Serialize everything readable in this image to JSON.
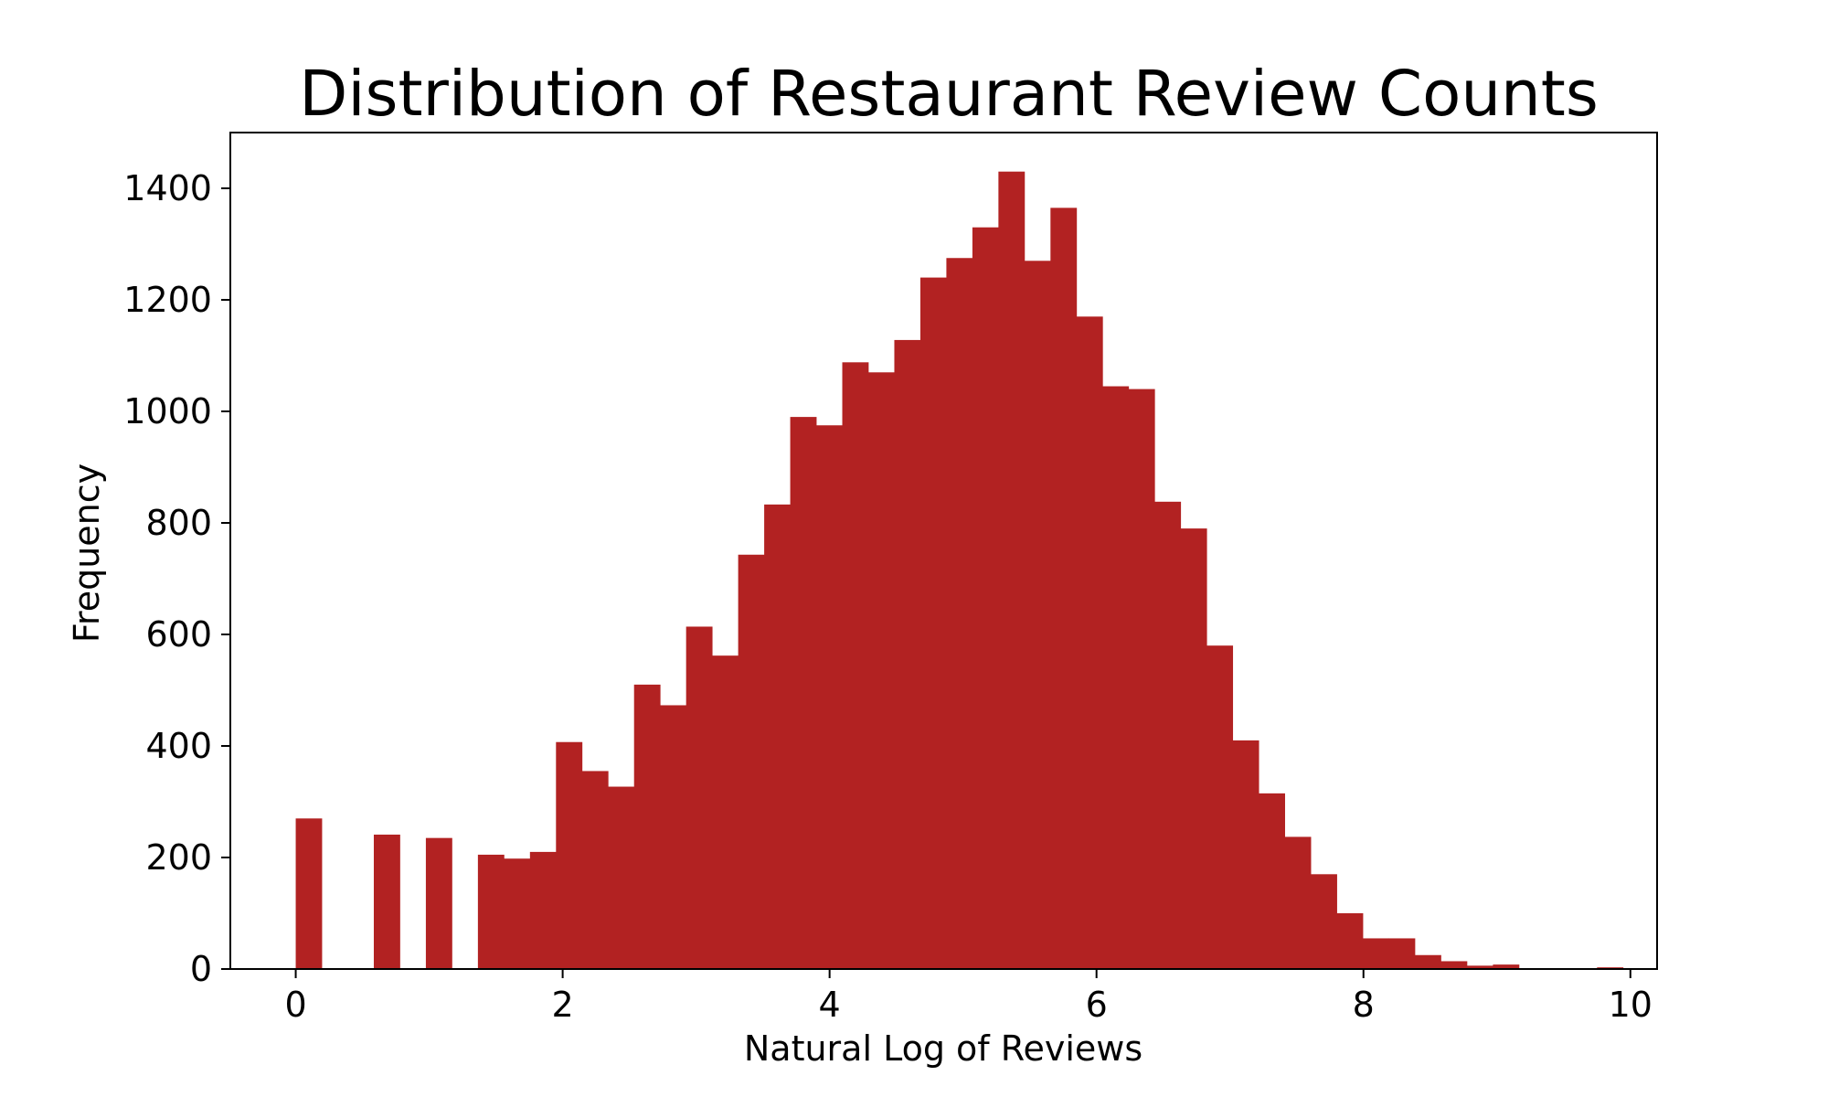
{
  "chart_data": {
    "type": "bar",
    "title": "Distribution of Restaurant Review Counts",
    "xlabel": "Natural Log of Reviews",
    "ylabel": "Frequency",
    "xlim": [
      -0.49,
      10.2
    ],
    "ylim": [
      0,
      1500
    ],
    "xticks": [
      0,
      2,
      4,
      6,
      8,
      10
    ],
    "yticks": [
      0,
      200,
      400,
      600,
      800,
      1000,
      1200,
      1400
    ],
    "grid": false,
    "color": "#b22222",
    "bin_start": 0.0,
    "bin_width": 0.195,
    "values": [
      270,
      0,
      0,
      241,
      0,
      235,
      0,
      205,
      198,
      210,
      407,
      355,
      327,
      510,
      473,
      614,
      562,
      743,
      833,
      990,
      975,
      1088,
      1070,
      1128,
      1240,
      1275,
      1330,
      1430,
      1270,
      1365,
      1170,
      1045,
      1040,
      838,
      790,
      580,
      410,
      315,
      237,
      170,
      100,
      55,
      55,
      25,
      14,
      6,
      8,
      0,
      0,
      0,
      3,
      0,
      0,
      0
    ]
  }
}
